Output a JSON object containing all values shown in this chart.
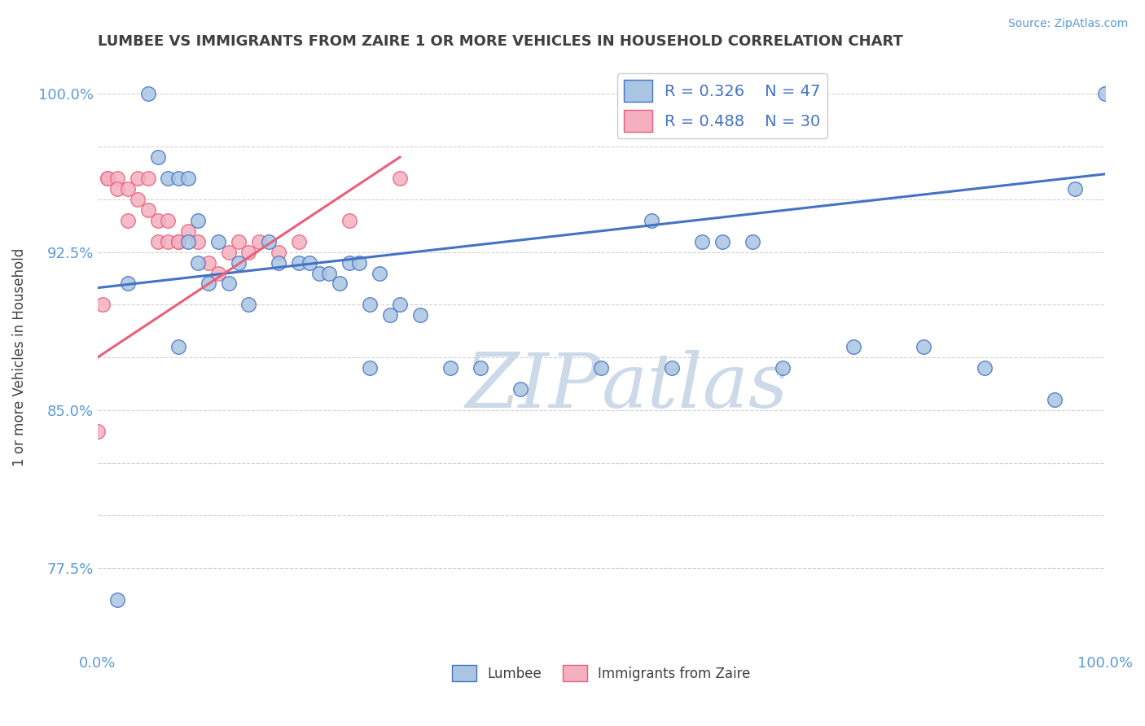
{
  "title": "LUMBEE VS IMMIGRANTS FROM ZAIRE 1 OR MORE VEHICLES IN HOUSEHOLD CORRELATION CHART",
  "source": "Source: ZipAtlas.com",
  "ylabel": "1 or more Vehicles in Household",
  "legend_label1": "Lumbee",
  "legend_label2": "Immigrants from Zaire",
  "R1": 0.326,
  "N1": 47,
  "R2": 0.488,
  "N2": 30,
  "xmin": 0.0,
  "xmax": 1.0,
  "ymin": 0.735,
  "ymax": 1.015,
  "yticks": [
    0.775,
    0.8,
    0.825,
    0.85,
    0.875,
    0.9,
    0.925,
    0.95,
    0.975,
    1.0
  ],
  "ytick_labels": [
    "77.5%",
    "",
    "",
    "85.0%",
    "",
    "",
    "92.5%",
    "",
    "",
    "100.0%"
  ],
  "blue_scatter_x": [
    0.02,
    0.03,
    0.05,
    0.06,
    0.07,
    0.08,
    0.08,
    0.09,
    0.09,
    0.1,
    0.1,
    0.11,
    0.12,
    0.13,
    0.14,
    0.15,
    0.17,
    0.18,
    0.2,
    0.21,
    0.22,
    0.23,
    0.24,
    0.25,
    0.26,
    0.27,
    0.27,
    0.28,
    0.29,
    0.3,
    0.32,
    0.35,
    0.38,
    0.42,
    0.5,
    0.55,
    0.57,
    0.6,
    0.62,
    0.65,
    0.68,
    0.75,
    0.82,
    0.88,
    0.95,
    0.97,
    1.0
  ],
  "blue_scatter_y": [
    0.76,
    0.91,
    1.0,
    0.97,
    0.96,
    0.96,
    0.88,
    0.96,
    0.93,
    0.94,
    0.92,
    0.91,
    0.93,
    0.91,
    0.92,
    0.9,
    0.93,
    0.92,
    0.92,
    0.92,
    0.915,
    0.915,
    0.91,
    0.92,
    0.92,
    0.9,
    0.87,
    0.915,
    0.895,
    0.9,
    0.895,
    0.87,
    0.87,
    0.86,
    0.87,
    0.94,
    0.87,
    0.93,
    0.93,
    0.93,
    0.87,
    0.88,
    0.88,
    0.87,
    0.855,
    0.955,
    1.0
  ],
  "pink_scatter_x": [
    0.0,
    0.005,
    0.01,
    0.01,
    0.02,
    0.02,
    0.03,
    0.03,
    0.04,
    0.04,
    0.05,
    0.05,
    0.06,
    0.06,
    0.07,
    0.07,
    0.08,
    0.08,
    0.09,
    0.1,
    0.11,
    0.12,
    0.13,
    0.14,
    0.15,
    0.16,
    0.18,
    0.2,
    0.25,
    0.3
  ],
  "pink_scatter_y": [
    0.84,
    0.9,
    0.96,
    0.96,
    0.96,
    0.955,
    0.94,
    0.955,
    0.96,
    0.95,
    0.96,
    0.945,
    0.94,
    0.93,
    0.94,
    0.93,
    0.93,
    0.93,
    0.935,
    0.93,
    0.92,
    0.915,
    0.925,
    0.93,
    0.925,
    0.93,
    0.925,
    0.93,
    0.94,
    0.96
  ],
  "blue_color": "#aac5e2",
  "pink_color": "#f4afc0",
  "blue_line_color": "#4472c4",
  "pink_line_color": "#e8607a",
  "watermark_color": "#ccd9e8",
  "grid_color": "#cccccc",
  "title_color": "#404040",
  "source_color": "#5b9bd5",
  "tick_label_color": "#5b9bd5"
}
